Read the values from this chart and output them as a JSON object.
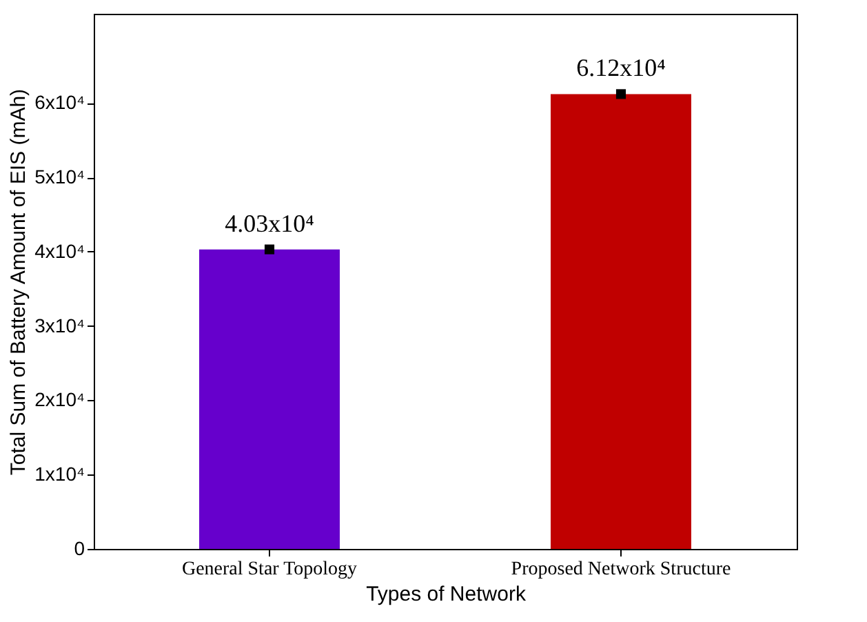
{
  "chart_data": {
    "type": "bar",
    "xlabel": "Types of Network",
    "ylabel": "Total Sum of Battery Amount of EIS (mAh)",
    "categories": [
      "General Star Topology",
      "Proposed Network Structure"
    ],
    "series": [
      {
        "values": [
          40300,
          61200
        ],
        "colors": [
          "#6600cc",
          "#c00000"
        ],
        "value_labels": [
          "4.03x10⁴",
          "6.12x10⁴"
        ]
      },
      {
        "type": "scatter",
        "x": [
          "General Star Topology",
          "Proposed Network Structure"
        ],
        "values": [
          40300,
          61200
        ],
        "color": "#000000",
        "marker": "square"
      }
    ],
    "ylim": [
      0,
      72000
    ],
    "yticks": [
      0,
      {
        "value": 10000,
        "label": "1x10⁴"
      },
      {
        "value": 20000,
        "label": "2x10⁴"
      },
      {
        "value": 30000,
        "label": "3x10⁴"
      },
      {
        "value": 40000,
        "label": "4x10⁴"
      },
      {
        "value": 50000,
        "label": "5x10⁴"
      },
      {
        "value": 60000,
        "label": "6x10⁴"
      }
    ],
    "grid": false
  }
}
